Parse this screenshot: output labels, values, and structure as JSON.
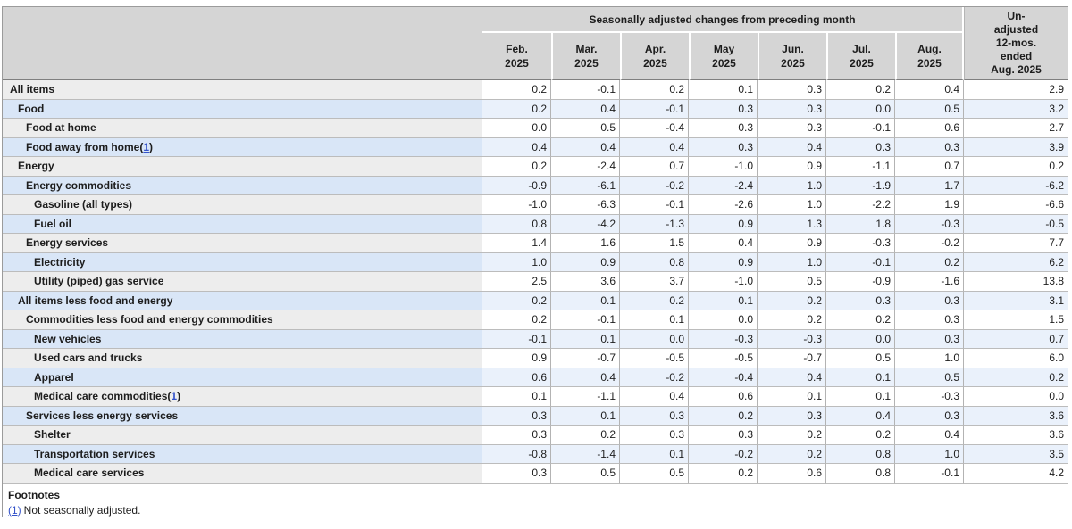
{
  "colors": {
    "header_bg": "#d5d5d5",
    "label_odd_bg": "#ededed",
    "label_even_bg": "#d9e6f7",
    "data_odd_bg": "#ffffff",
    "data_even_bg": "#eaf1fb",
    "link": "#3352c9",
    "border_outer": "#9b9b9b",
    "text": "#1d1d1d"
  },
  "table": {
    "group_header": "Seasonally adjusted changes from preceding month",
    "unadjusted_header_lines": [
      "Un-",
      "adjusted",
      "12-mos.",
      "ended",
      "Aug. 2025"
    ],
    "months": [
      {
        "month": "Feb.",
        "year": "2025"
      },
      {
        "month": "Mar.",
        "year": "2025"
      },
      {
        "month": "Apr.",
        "year": "2025"
      },
      {
        "month": "May",
        "year": "2025"
      },
      {
        "month": "Jun.",
        "year": "2025"
      },
      {
        "month": "Jul.",
        "year": "2025"
      },
      {
        "month": "Aug.",
        "year": "2025"
      }
    ],
    "rows": [
      {
        "label": "All items",
        "indent": 0,
        "footnote": null
      },
      {
        "label": "Food",
        "indent": 1,
        "footnote": null
      },
      {
        "label": "Food at home",
        "indent": 2,
        "footnote": null
      },
      {
        "label": "Food away from home",
        "indent": 2,
        "footnote": "1"
      },
      {
        "label": "Energy",
        "indent": 1,
        "footnote": null
      },
      {
        "label": "Energy commodities",
        "indent": 2,
        "footnote": null
      },
      {
        "label": "Gasoline (all types)",
        "indent": 3,
        "footnote": null
      },
      {
        "label": "Fuel oil",
        "indent": 3,
        "footnote": null
      },
      {
        "label": "Energy services",
        "indent": 2,
        "footnote": null
      },
      {
        "label": "Electricity",
        "indent": 3,
        "footnote": null
      },
      {
        "label": "Utility (piped) gas service",
        "indent": 3,
        "footnote": null
      },
      {
        "label": "All items less food and energy",
        "indent": 1,
        "footnote": null
      },
      {
        "label": "Commodities less food and energy commodities",
        "indent": 2,
        "footnote": null
      },
      {
        "label": "New vehicles",
        "indent": 3,
        "footnote": null
      },
      {
        "label": "Used cars and trucks",
        "indent": 3,
        "footnote": null
      },
      {
        "label": "Apparel",
        "indent": 3,
        "footnote": null
      },
      {
        "label": "Medical care commodities",
        "indent": 3,
        "footnote": "1"
      },
      {
        "label": "Services less energy services",
        "indent": 2,
        "footnote": null
      },
      {
        "label": "Shelter",
        "indent": 3,
        "footnote": null
      },
      {
        "label": "Transportation services",
        "indent": 3,
        "footnote": null
      },
      {
        "label": "Medical care services",
        "indent": 3,
        "footnote": null
      }
    ],
    "footnotes": {
      "title": "Footnotes",
      "items": [
        {
          "ref": "(1)",
          "text": "Not seasonally adjusted."
        }
      ]
    }
  },
  "chart_data": {
    "type": "table",
    "title": "Seasonally adjusted changes from preceding month",
    "columns": [
      "Feb. 2025",
      "Mar. 2025",
      "Apr. 2025",
      "May 2025",
      "Jun. 2025",
      "Jul. 2025",
      "Aug. 2025",
      "Un-adjusted 12-mos. ended Aug. 2025"
    ],
    "row_labels": [
      "All items",
      "Food",
      "Food at home",
      "Food away from home",
      "Energy",
      "Energy commodities",
      "Gasoline (all types)",
      "Fuel oil",
      "Energy services",
      "Electricity",
      "Utility (piped) gas service",
      "All items less food and energy",
      "Commodities less food and energy commodities",
      "New vehicles",
      "Used cars and trucks",
      "Apparel",
      "Medical care commodities",
      "Services less energy services",
      "Shelter",
      "Transportation services",
      "Medical care services"
    ],
    "values": [
      [
        0.2,
        -0.1,
        0.2,
        0.1,
        0.3,
        0.2,
        0.4,
        2.9
      ],
      [
        0.2,
        0.4,
        -0.1,
        0.3,
        0.3,
        0.0,
        0.5,
        3.2
      ],
      [
        0.0,
        0.5,
        -0.4,
        0.3,
        0.3,
        -0.1,
        0.6,
        2.7
      ],
      [
        0.4,
        0.4,
        0.4,
        0.3,
        0.4,
        0.3,
        0.3,
        3.9
      ],
      [
        0.2,
        -2.4,
        0.7,
        -1.0,
        0.9,
        -1.1,
        0.7,
        0.2
      ],
      [
        -0.9,
        -6.1,
        -0.2,
        -2.4,
        1.0,
        -1.9,
        1.7,
        -6.2
      ],
      [
        -1.0,
        -6.3,
        -0.1,
        -2.6,
        1.0,
        -2.2,
        1.9,
        -6.6
      ],
      [
        0.8,
        -4.2,
        -1.3,
        0.9,
        1.3,
        1.8,
        -0.3,
        -0.5
      ],
      [
        1.4,
        1.6,
        1.5,
        0.4,
        0.9,
        -0.3,
        -0.2,
        7.7
      ],
      [
        1.0,
        0.9,
        0.8,
        0.9,
        1.0,
        -0.1,
        0.2,
        6.2
      ],
      [
        2.5,
        3.6,
        3.7,
        -1.0,
        0.5,
        -0.9,
        -1.6,
        13.8
      ],
      [
        0.2,
        0.1,
        0.2,
        0.1,
        0.2,
        0.3,
        0.3,
        3.1
      ],
      [
        0.2,
        -0.1,
        0.1,
        0.0,
        0.2,
        0.2,
        0.3,
        1.5
      ],
      [
        -0.1,
        0.1,
        0.0,
        -0.3,
        -0.3,
        0.0,
        0.3,
        0.7
      ],
      [
        0.9,
        -0.7,
        -0.5,
        -0.5,
        -0.7,
        0.5,
        1.0,
        6.0
      ],
      [
        0.6,
        0.4,
        -0.2,
        -0.4,
        0.4,
        0.1,
        0.5,
        0.2
      ],
      [
        0.1,
        -1.1,
        0.4,
        0.6,
        0.1,
        0.1,
        -0.3,
        0.0
      ],
      [
        0.3,
        0.1,
        0.3,
        0.2,
        0.3,
        0.4,
        0.3,
        3.6
      ],
      [
        0.3,
        0.2,
        0.3,
        0.3,
        0.2,
        0.2,
        0.4,
        3.6
      ],
      [
        -0.8,
        -1.4,
        0.1,
        -0.2,
        0.2,
        0.8,
        1.0,
        3.5
      ],
      [
        0.3,
        0.5,
        0.5,
        0.2,
        0.6,
        0.8,
        -0.1,
        4.2
      ]
    ]
  }
}
